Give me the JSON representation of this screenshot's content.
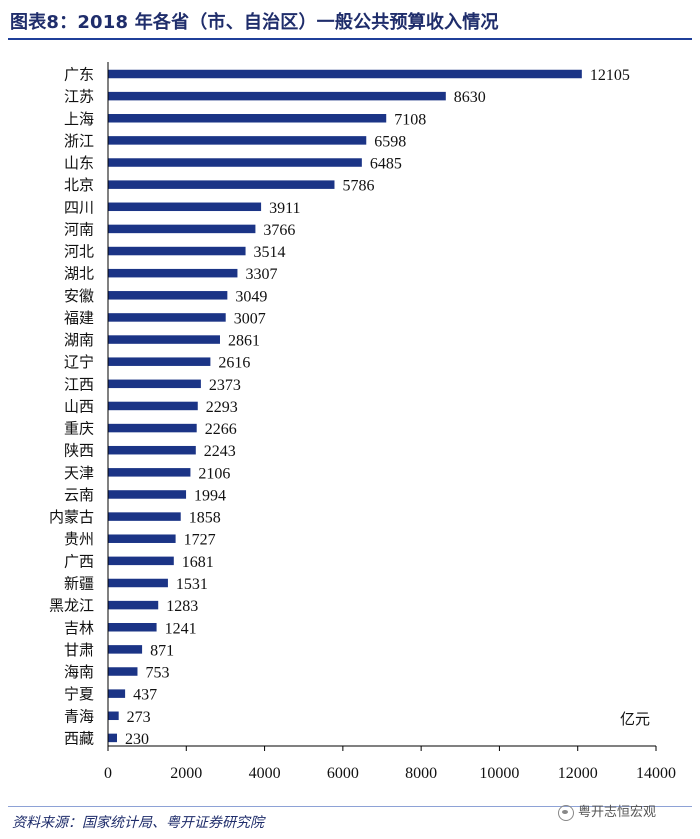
{
  "header": {
    "title": "图表8：2018 年各省（市、自治区）一般公共预算收入情况"
  },
  "footer": {
    "source": "资料来源：国家统计局、粤开证券研究院",
    "watermark": "粤开志恒宏观"
  },
  "colors": {
    "bar": "#1b3486",
    "title": "#1f2d6b",
    "rule": "#1f3f99"
  },
  "chart_data": {
    "type": "bar",
    "orientation": "horizontal",
    "title": "2018 年各省（市、自治区）一般公共预算收入情况",
    "unit": "亿元",
    "xlim": [
      0,
      14000
    ],
    "xticks": [
      0,
      2000,
      4000,
      6000,
      8000,
      10000,
      12000,
      14000
    ],
    "grid": false,
    "categories": [
      "广东",
      "江苏",
      "上海",
      "浙江",
      "山东",
      "北京",
      "四川",
      "河南",
      "河北",
      "湖北",
      "安徽",
      "福建",
      "湖南",
      "辽宁",
      "江西",
      "山西",
      "重庆",
      "陕西",
      "天津",
      "云南",
      "内蒙古",
      "贵州",
      "广西",
      "新疆",
      "黑龙江",
      "吉林",
      "甘肃",
      "海南",
      "宁夏",
      "青海",
      "西藏"
    ],
    "values": [
      12105,
      8630,
      7108,
      6598,
      6485,
      5786,
      3911,
      3766,
      3514,
      3307,
      3049,
      3007,
      2861,
      2616,
      2373,
      2293,
      2266,
      2243,
      2106,
      1994,
      1858,
      1727,
      1681,
      1531,
      1283,
      1241,
      871,
      753,
      437,
      273,
      230
    ]
  }
}
